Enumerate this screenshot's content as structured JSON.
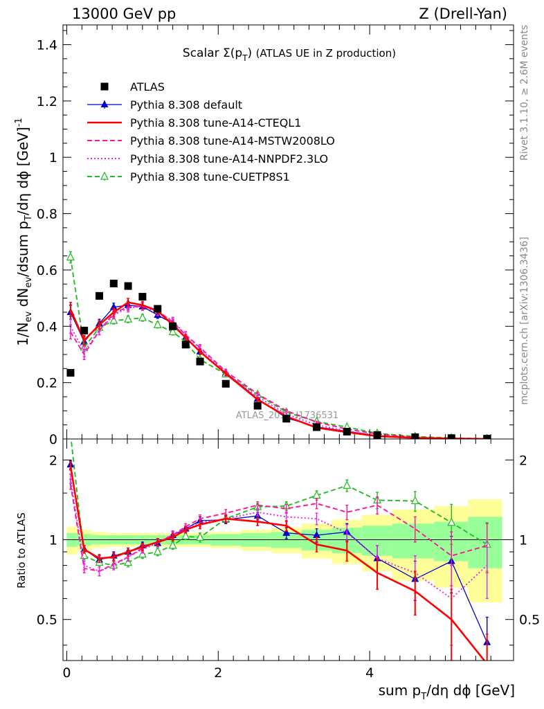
{
  "header": {
    "left": "13000 GeV pp",
    "right": "Z (Drell-Yan)"
  },
  "side_labels": {
    "rivet": "Rivet 3.1.10, ≥ 2.6M events",
    "mcplots": "mcplots.cern.ch [arXiv:1306.3436]"
  },
  "watermark": "ATLAS_2019_I1736531",
  "colors": {
    "atlas": "#000000",
    "default": "#0000cc",
    "cteql1": "#ff0000",
    "mstw": "#ff1493",
    "nnpdf": "#ee22ee",
    "cuetp8s1": "#22bb22",
    "band_inner": "#99ff99",
    "band_outer": "#ffff99"
  },
  "chart_data": [
    {
      "type": "line",
      "title": "Scalar Σ(p_T) (ATLAS UE in Z production)",
      "xlabel": "sum p_T/dη dϕ [GeV]",
      "ylabel": "1/N_ev dN_ev/dsum p_T/dη dϕ [GeV]^-1",
      "xlim": [
        -0.05,
        5.9
      ],
      "ylim": [
        0,
        1.47
      ],
      "y_ticks": [
        "0",
        "0.2",
        "0.4",
        "0.6",
        "0.8",
        "1",
        "1.2",
        "1.4"
      ],
      "legend_position": "top-left",
      "x": [
        0.05,
        0.23,
        0.43,
        0.62,
        0.81,
        1.0,
        1.2,
        1.4,
        1.57,
        1.76,
        2.1,
        2.52,
        2.9,
        3.3,
        3.7,
        4.1,
        4.6,
        5.08,
        5.55
      ],
      "series": [
        {
          "name": "ATLAS",
          "key": "atlas",
          "marker": "square",
          "dash": "none",
          "values": [
            0.235,
            0.385,
            0.508,
            0.552,
            0.543,
            0.505,
            0.462,
            0.4,
            0.335,
            0.275,
            0.196,
            0.118,
            0.072,
            0.042,
            0.026,
            0.014,
            0.006,
            0.003,
            0.001
          ],
          "errors": []
        },
        {
          "name": "Pythia 8.308 default",
          "key": "default",
          "marker": "triangle",
          "dash": "none",
          "values": [
            0.45,
            0.345,
            0.41,
            0.468,
            0.475,
            0.47,
            0.44,
            0.41,
            0.36,
            0.31,
            0.235,
            0.143,
            0.075,
            0.043,
            0.027,
            0.012,
            0.004,
            0.0025,
            0.0004
          ],
          "errors": [
            0.025,
            0.018,
            0.015,
            0.014,
            0.014,
            0.013,
            0.012,
            0.012,
            0.011,
            0.01,
            0.008,
            0.006,
            0.004,
            0.003,
            0.002,
            0.001,
            0.001,
            0.001,
            0.0002
          ]
        },
        {
          "name": "Pythia 8.308 tune-A14-CTEQL1",
          "key": "cteql1",
          "marker": "none",
          "dash": "none",
          "values": [
            0.46,
            0.35,
            0.405,
            0.45,
            0.485,
            0.475,
            0.455,
            0.405,
            0.36,
            0.31,
            0.232,
            0.14,
            0.08,
            0.04,
            0.024,
            0.01,
            0.004,
            0.0015,
            0.0003
          ],
          "errors": [
            0.025,
            0.018,
            0.015,
            0.014,
            0.014,
            0.013,
            0.012,
            0.012,
            0.011,
            0.01,
            0.008,
            0.006,
            0.004,
            0.003,
            0.002,
            0.001,
            0.001,
            0.001,
            0.0002
          ]
        },
        {
          "name": "Pythia 8.308 tune-A14-MSTW2008LO",
          "key": "mstw",
          "marker": "none",
          "dash": "dashed",
          "values": [
            0.38,
            0.3,
            0.385,
            0.445,
            0.47,
            0.47,
            0.455,
            0.415,
            0.37,
            0.325,
            0.24,
            0.16,
            0.1,
            0.06,
            0.035,
            0.018,
            0.006,
            0.0025,
            0.0008
          ],
          "errors": [
            0.025,
            0.018,
            0.015,
            0.014,
            0.014,
            0.013,
            0.012,
            0.012,
            0.011,
            0.01,
            0.008,
            0.006,
            0.004,
            0.003,
            0.002,
            0.001,
            0.001,
            0.001,
            0.0002
          ]
        },
        {
          "name": "Pythia 8.308 tune-A14-NNPDF2.3LO",
          "key": "nnpdf",
          "marker": "none",
          "dash": "dotted",
          "values": [
            0.4,
            0.31,
            0.385,
            0.44,
            0.465,
            0.47,
            0.45,
            0.42,
            0.37,
            0.32,
            0.235,
            0.15,
            0.088,
            0.05,
            0.028,
            0.012,
            0.0045,
            0.0018,
            0.0006
          ],
          "errors": [
            0.025,
            0.018,
            0.015,
            0.014,
            0.014,
            0.013,
            0.012,
            0.012,
            0.011,
            0.01,
            0.008,
            0.006,
            0.004,
            0.003,
            0.002,
            0.001,
            0.001,
            0.001,
            0.0002
          ]
        },
        {
          "name": "Pythia 8.308 tune-CUETP8S1",
          "key": "cuetp8s1",
          "marker": "open-triangle",
          "dash": "dashed",
          "values": [
            0.645,
            0.325,
            0.395,
            0.42,
            0.425,
            0.43,
            0.405,
            0.38,
            0.345,
            0.282,
            0.23,
            0.158,
            0.095,
            0.062,
            0.042,
            0.02,
            0.0085,
            0.0035,
            0.001
          ],
          "errors": [
            0.02,
            0.015,
            0.013,
            0.012,
            0.012,
            0.012,
            0.011,
            0.011,
            0.01,
            0.009,
            0.008,
            0.006,
            0.004,
            0.003,
            0.002,
            0.001,
            0.001,
            0.001,
            0.0002
          ]
        }
      ]
    },
    {
      "type": "line",
      "title": "",
      "xlabel": "sum p_T/dη dϕ [GeV]",
      "ylabel": "Ratio to ATLAS",
      "y_scale": "log",
      "xlim": [
        -0.05,
        5.9
      ],
      "ylim": [
        0.35,
        2.4
      ],
      "x_ticks": [
        "0",
        "2",
        "4"
      ],
      "y_ticks": [
        "0.5",
        "1",
        "2"
      ],
      "x": [
        0.05,
        0.23,
        0.43,
        0.62,
        0.81,
        1.0,
        1.2,
        1.4,
        1.57,
        1.76,
        2.1,
        2.52,
        2.9,
        3.3,
        3.7,
        4.1,
        4.6,
        5.08,
        5.55
      ],
      "reference_band": {
        "x_edges": [
          0.0,
          0.14,
          0.33,
          0.52,
          0.71,
          0.9,
          1.1,
          1.3,
          1.48,
          1.66,
          1.9,
          2.3,
          2.7,
          3.1,
          3.5,
          3.9,
          4.3,
          4.85,
          5.3,
          5.75
        ],
        "inner": [
          0.06,
          0.05,
          0.04,
          0.04,
          0.04,
          0.04,
          0.04,
          0.04,
          0.04,
          0.04,
          0.05,
          0.06,
          0.07,
          0.09,
          0.11,
          0.13,
          0.15,
          0.17,
          0.22
        ],
        "outer": [
          0.12,
          0.09,
          0.07,
          0.06,
          0.06,
          0.06,
          0.06,
          0.06,
          0.06,
          0.06,
          0.07,
          0.09,
          0.11,
          0.15,
          0.19,
          0.24,
          0.3,
          0.34,
          0.42
        ]
      },
      "series": [
        {
          "name": "Pythia 8.308 default",
          "key": "default",
          "marker": "triangle",
          "dash": "none",
          "values": [
            1.92,
            0.92,
            0.84,
            0.87,
            0.9,
            0.95,
            0.97,
            1.04,
            1.1,
            1.18,
            1.19,
            1.23,
            1.06,
            1.04,
            1.07,
            0.85,
            0.71,
            0.83,
            0.41
          ],
          "errors": [
            0.07,
            0.03,
            0.03,
            0.03,
            0.03,
            0.03,
            0.03,
            0.03,
            0.03,
            0.04,
            0.04,
            0.04,
            0.05,
            0.06,
            0.08,
            0.1,
            0.12,
            0.2,
            0.1
          ]
        },
        {
          "name": "Pythia 8.308 tune-A14-CTEQL1",
          "key": "cteql1",
          "marker": "none",
          "dash": "none",
          "values": [
            1.9,
            0.92,
            0.85,
            0.86,
            0.9,
            0.94,
            0.98,
            1.02,
            1.09,
            1.14,
            1.2,
            1.17,
            1.13,
            0.96,
            0.91,
            0.75,
            0.64,
            0.5,
            0.34
          ],
          "errors": [
            0.07,
            0.03,
            0.03,
            0.03,
            0.03,
            0.03,
            0.03,
            0.03,
            0.03,
            0.04,
            0.04,
            0.04,
            0.05,
            0.06,
            0.08,
            0.1,
            0.12,
            0.15,
            0.1
          ]
        },
        {
          "name": "Pythia 8.308 tune-A14-MSTW2008LO",
          "key": "mstw",
          "marker": "none",
          "dash": "dashed",
          "values": [
            1.62,
            0.78,
            0.76,
            0.81,
            0.86,
            0.93,
            0.98,
            1.04,
            1.12,
            1.2,
            1.26,
            1.35,
            1.31,
            1.37,
            1.27,
            1.35,
            1.1,
            0.87,
            0.95
          ],
          "errors": [
            0.07,
            0.03,
            0.03,
            0.03,
            0.03,
            0.03,
            0.03,
            0.03,
            0.03,
            0.04,
            0.04,
            0.04,
            0.05,
            0.06,
            0.08,
            0.1,
            0.12,
            0.2,
            0.2
          ]
        },
        {
          "name": "Pythia 8.308 tune-A14-NNPDF2.3LO",
          "key": "nnpdf",
          "marker": "none",
          "dash": "dotted",
          "values": [
            1.7,
            0.8,
            0.76,
            0.8,
            0.86,
            0.92,
            0.97,
            1.05,
            1.1,
            1.16,
            1.2,
            1.27,
            1.22,
            1.2,
            1.06,
            0.85,
            0.75,
            0.6,
            0.8
          ],
          "errors": [
            0.07,
            0.03,
            0.03,
            0.03,
            0.03,
            0.03,
            0.03,
            0.03,
            0.03,
            0.04,
            0.04,
            0.04,
            0.05,
            0.06,
            0.08,
            0.1,
            0.12,
            0.2,
            0.2
          ]
        },
        {
          "name": "Pythia 8.308 tune-CUETP8S1",
          "key": "cuetp8s1",
          "marker": "open-triangle",
          "dash": "dashed",
          "values": [
            2.5,
            0.87,
            0.82,
            0.8,
            0.82,
            0.88,
            0.9,
            0.95,
            1.03,
            1.02,
            1.2,
            1.33,
            1.34,
            1.47,
            1.6,
            1.41,
            1.4,
            1.16,
            0.96
          ],
          "errors": [
            0.07,
            0.03,
            0.03,
            0.03,
            0.03,
            0.03,
            0.03,
            0.03,
            0.03,
            0.04,
            0.04,
            0.04,
            0.05,
            0.06,
            0.08,
            0.1,
            0.12,
            0.2,
            0.2
          ]
        }
      ]
    }
  ]
}
